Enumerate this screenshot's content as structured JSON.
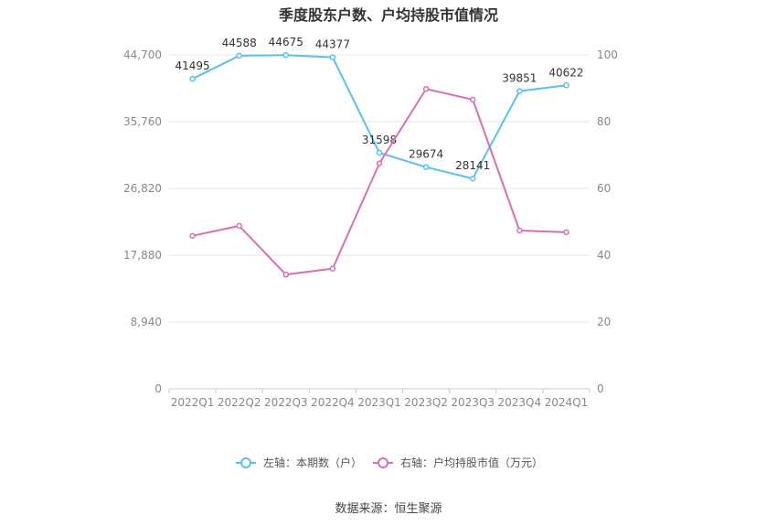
{
  "chart_data": {
    "type": "line",
    "title": "季度股东户数、户均持股市值情况",
    "source": "数据来源：恒生聚源",
    "categories": [
      "2022Q1",
      "2022Q2",
      "2022Q3",
      "2022Q4",
      "2023Q1",
      "2023Q2",
      "2023Q3",
      "2023Q4",
      "2024Q1"
    ],
    "left_axis": {
      "ylim": [
        0,
        44700
      ],
      "ticks": [
        "0",
        "8,940",
        "17,880",
        "26,820",
        "35,760",
        "44,700"
      ]
    },
    "right_axis": {
      "ylim": [
        0,
        100
      ],
      "ticks": [
        "0",
        "20",
        "40",
        "60",
        "80",
        "100"
      ]
    },
    "series": [
      {
        "name": "左轴：本期数（户）",
        "axis": "left",
        "color": "#5bc0eb",
        "values": [
          41495,
          44588,
          44675,
          44377,
          31598,
          29674,
          28141,
          39851,
          40622
        ],
        "labels": [
          "41495",
          "44588",
          "44675",
          "44377",
          "31598",
          "29674",
          "28141",
          "39851",
          "40622"
        ]
      },
      {
        "name": "右轴：户均持股市值（万元）",
        "axis": "right",
        "color": "#d570b4",
        "values": [
          45.8,
          48.8,
          34.2,
          36.0,
          67.5,
          89.8,
          86.6,
          47.4,
          46.9
        ]
      }
    ],
    "grid": true,
    "legend": "bottom"
  }
}
